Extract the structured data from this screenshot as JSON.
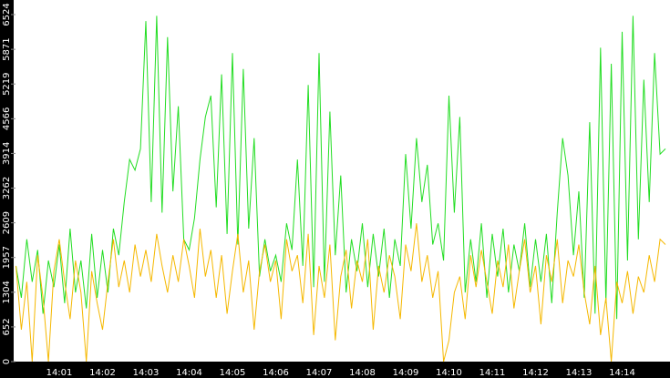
{
  "chart_data": {
    "type": "line",
    "categories": [
      null,
      null,
      null,
      null,
      null,
      null,
      null,
      null,
      "14:01",
      null,
      null,
      null,
      null,
      null,
      null,
      null,
      "14:02",
      null,
      null,
      null,
      null,
      null,
      null,
      null,
      "14:03",
      null,
      null,
      null,
      null,
      null,
      null,
      null,
      "14:04",
      null,
      null,
      null,
      null,
      null,
      null,
      null,
      "14:05",
      null,
      null,
      null,
      null,
      null,
      null,
      null,
      "14:06",
      null,
      null,
      null,
      null,
      null,
      null,
      null,
      "14:07",
      null,
      null,
      null,
      null,
      null,
      null,
      null,
      "14:08",
      null,
      null,
      null,
      null,
      null,
      null,
      null,
      "14:09",
      null,
      null,
      null,
      null,
      null,
      null,
      null,
      "14:10",
      null,
      null,
      null,
      null,
      null,
      null,
      null,
      "14:11",
      null,
      null,
      null,
      null,
      null,
      null,
      null,
      "14:12",
      null,
      null,
      null,
      null,
      null,
      null,
      null,
      "14:13",
      null,
      null,
      null,
      null,
      null,
      null,
      null,
      "14:14",
      null,
      null,
      null,
      null,
      null,
      null,
      null,
      null
    ],
    "series": [
      {
        "color": "#22dd22",
        "values": [
          1800,
          1200,
          2300,
          1500,
          2100,
          900,
          1900,
          1400,
          2200,
          1100,
          2500,
          1300,
          1900,
          1000,
          2400,
          1200,
          2100,
          1300,
          2500,
          2000,
          3000,
          3800,
          3600,
          4000,
          6400,
          3000,
          6500,
          2800,
          6100,
          3200,
          4800,
          2300,
          2100,
          2700,
          3800,
          4600,
          5000,
          2900,
          5400,
          2400,
          5800,
          2200,
          5500,
          2500,
          4200,
          1600,
          2300,
          1700,
          2000,
          1500,
          2600,
          2100,
          3800,
          1800,
          5200,
          1400,
          5800,
          1500,
          4700,
          2000,
          3500,
          1300,
          2300,
          1700,
          2600,
          1400,
          2400,
          1600,
          2500,
          1200,
          2300,
          1800,
          3900,
          2500,
          4200,
          3000,
          3700,
          2200,
          2600,
          1900,
          5000,
          2800,
          4600,
          1300,
          2300,
          1500,
          2600,
          1200,
          2400,
          1600,
          2500,
          1300,
          2200,
          1700,
          2600,
          1400,
          2300,
          1500,
          2400,
          1100,
          2800,
          4200,
          3500,
          2000,
          3200,
          1200,
          4500,
          900,
          5900,
          1100,
          5600,
          800,
          6200,
          1900,
          6500,
          2300,
          5300,
          3000,
          5800,
          3900,
          4000
        ]
      },
      {
        "color": "#f5b800",
        "values": [
          1800,
          600,
          1500,
          0,
          2000,
          1200,
          0,
          1700,
          2300,
          1500,
          800,
          1900,
          1300,
          0,
          1700,
          1100,
          600,
          1500,
          2300,
          1400,
          1900,
          1300,
          2200,
          1600,
          2100,
          1500,
          2400,
          1800,
          1300,
          2000,
          1500,
          2300,
          1800,
          1200,
          2500,
          1600,
          2100,
          1200,
          2000,
          900,
          1700,
          2400,
          1300,
          1900,
          600,
          1700,
          2200,
          1500,
          1900,
          800,
          2300,
          1700,
          2000,
          1100,
          2400,
          500,
          1800,
          1200,
          2200,
          400,
          1600,
          2100,
          1000,
          1900,
          1500,
          2300,
          600,
          1800,
          1300,
          2000,
          1600,
          800,
          2200,
          1700,
          2600,
          1500,
          2000,
          1200,
          1700,
          0,
          400,
          1300,
          1600,
          800,
          2000,
          1400,
          2100,
          1500,
          900,
          1900,
          1400,
          2200,
          1000,
          1700,
          2300,
          1300,
          1800,
          700,
          2000,
          1500,
          2300,
          1100,
          1900,
          1600,
          2200,
          1300,
          700,
          1800,
          500,
          1200,
          0,
          1500,
          1100,
          1700,
          900,
          1600,
          1300,
          2000,
          1500,
          2300,
          2200
        ]
      }
    ],
    "ylim": [
      0,
      6524
    ],
    "yticks": [
      0,
      652,
      1304,
      1957,
      2609,
      3262,
      3914,
      4566,
      5219,
      5871,
      6524
    ]
  }
}
